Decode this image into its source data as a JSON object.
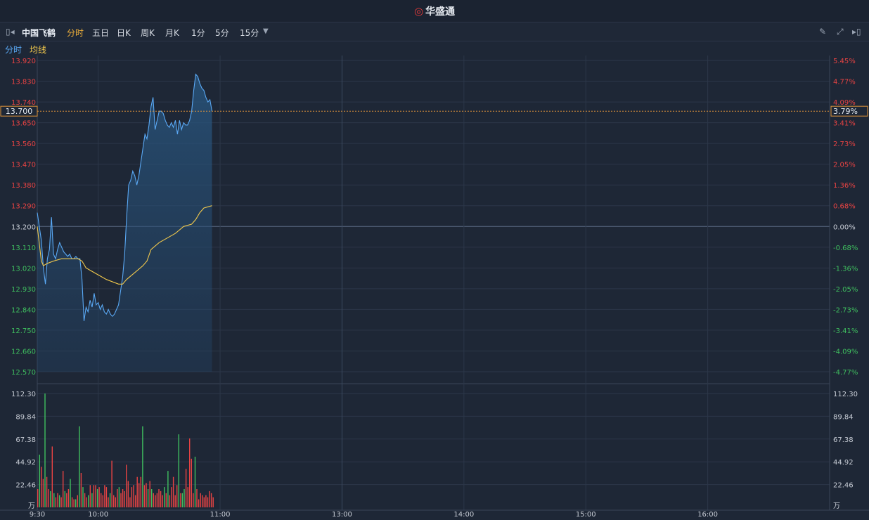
{
  "app": {
    "logo_text": "华盛通"
  },
  "toolbar": {
    "stock_name": "中国飞鹤",
    "periods": [
      "分时",
      "五日",
      "日K",
      "周K",
      "月K",
      "1分",
      "5分",
      "15分"
    ],
    "active_period": "分时"
  },
  "legend": {
    "price_label": "分时",
    "avg_label": "均线"
  },
  "colors": {
    "background": "#1e2736",
    "price_line": "#5aa9f5",
    "avg_line": "#f2c94c",
    "up": "#e84343",
    "down": "#3fbf5f",
    "current_marker": "#e0943a",
    "grid": "#2c3749"
  },
  "chart_data": {
    "type": "line",
    "prev_close": 13.2,
    "current_price": "13.700",
    "current_pct": "3.79%",
    "y_ticks_left": [
      "13.920",
      "13.830",
      "13.740",
      "13.650",
      "13.560",
      "13.470",
      "13.380",
      "13.290",
      "13.200",
      "13.110",
      "13.020",
      "12.930",
      "12.840",
      "12.750",
      "12.660",
      "12.570"
    ],
    "y_ticks_right": [
      "5.45%",
      "4.77%",
      "4.09%",
      "3.41%",
      "2.73%",
      "2.05%",
      "1.36%",
      "0.68%",
      "0.00%",
      "-0.68%",
      "-1.36%",
      "-2.05%",
      "-2.73%",
      "-3.41%",
      "-4.09%",
      "-4.77%"
    ],
    "ylim": [
      12.57,
      13.92
    ],
    "x_ticks": [
      "9:30",
      "10:00",
      "11:00",
      "13:00",
      "14:00",
      "15:00",
      "16:00"
    ],
    "volume_ticks": [
      "112.30",
      "89.84",
      "67.38",
      "44.92",
      "22.46"
    ],
    "volume_unit": "万",
    "volume_max": 112.3,
    "price": [
      [
        0,
        13.26
      ],
      [
        2,
        13.14
      ],
      [
        3,
        13.02
      ],
      [
        4,
        12.95
      ],
      [
        5,
        13.06
      ],
      [
        6,
        13.1
      ],
      [
        7,
        13.24
      ],
      [
        8,
        13.08
      ],
      [
        9,
        13.06
      ],
      [
        10,
        13.1
      ],
      [
        11,
        13.13
      ],
      [
        12,
        13.11
      ],
      [
        13,
        13.09
      ],
      [
        14,
        13.08
      ],
      [
        15,
        13.07
      ],
      [
        16,
        13.08
      ],
      [
        17,
        13.06
      ],
      [
        18,
        13.06
      ],
      [
        19,
        13.07
      ],
      [
        20,
        13.06
      ],
      [
        21,
        13.06
      ],
      [
        22,
        12.97
      ],
      [
        23,
        12.79
      ],
      [
        24,
        12.85
      ],
      [
        25,
        12.83
      ],
      [
        26,
        12.88
      ],
      [
        27,
        12.85
      ],
      [
        28,
        12.91
      ],
      [
        29,
        12.86
      ],
      [
        30,
        12.87
      ],
      [
        31,
        12.84
      ],
      [
        32,
        12.86
      ],
      [
        33,
        12.83
      ],
      [
        34,
        12.82
      ],
      [
        35,
        12.84
      ],
      [
        36,
        12.82
      ],
      [
        37,
        12.81
      ],
      [
        38,
        12.82
      ],
      [
        39,
        12.84
      ],
      [
        40,
        12.86
      ],
      [
        41,
        12.92
      ],
      [
        42,
        12.98
      ],
      [
        43,
        13.08
      ],
      [
        44,
        13.24
      ],
      [
        45,
        13.38
      ],
      [
        46,
        13.4
      ],
      [
        47,
        13.44
      ],
      [
        48,
        13.42
      ],
      [
        49,
        13.38
      ],
      [
        50,
        13.42
      ],
      [
        51,
        13.48
      ],
      [
        52,
        13.54
      ],
      [
        53,
        13.6
      ],
      [
        54,
        13.58
      ],
      [
        55,
        13.64
      ],
      [
        56,
        13.72
      ],
      [
        57,
        13.76
      ],
      [
        58,
        13.62
      ],
      [
        59,
        13.66
      ],
      [
        60,
        13.7
      ],
      [
        61,
        13.7
      ],
      [
        62,
        13.69
      ],
      [
        63,
        13.66
      ],
      [
        64,
        13.64
      ],
      [
        65,
        13.63
      ],
      [
        66,
        13.65
      ],
      [
        67,
        13.63
      ],
      [
        68,
        13.66
      ],
      [
        69,
        13.6
      ],
      [
        70,
        13.66
      ],
      [
        71,
        13.62
      ],
      [
        72,
        13.65
      ],
      [
        73,
        13.64
      ],
      [
        74,
        13.64
      ],
      [
        75,
        13.66
      ],
      [
        76,
        13.7
      ],
      [
        77,
        13.79
      ],
      [
        78,
        13.86
      ],
      [
        79,
        13.85
      ],
      [
        80,
        13.82
      ],
      [
        81,
        13.8
      ],
      [
        82,
        13.79
      ],
      [
        83,
        13.76
      ],
      [
        84,
        13.74
      ],
      [
        85,
        13.75
      ],
      [
        86,
        13.7
      ]
    ],
    "avg": [
      [
        0,
        13.2
      ],
      [
        2,
        13.05
      ],
      [
        3,
        13.03
      ],
      [
        5,
        13.04
      ],
      [
        8,
        13.05
      ],
      [
        12,
        13.06
      ],
      [
        16,
        13.06
      ],
      [
        20,
        13.06
      ],
      [
        22,
        13.05
      ],
      [
        24,
        13.02
      ],
      [
        28,
        13.0
      ],
      [
        34,
        12.97
      ],
      [
        40,
        12.95
      ],
      [
        42,
        12.95
      ],
      [
        44,
        12.97
      ],
      [
        48,
        13.0
      ],
      [
        52,
        13.03
      ],
      [
        54,
        13.05
      ],
      [
        56,
        13.1
      ],
      [
        60,
        13.13
      ],
      [
        64,
        13.15
      ],
      [
        68,
        13.17
      ],
      [
        72,
        13.2
      ],
      [
        76,
        13.21
      ],
      [
        78,
        13.23
      ],
      [
        80,
        13.26
      ],
      [
        82,
        13.28
      ],
      [
        86,
        13.29
      ]
    ],
    "volume": [
      [
        0,
        18,
        "up"
      ],
      [
        1,
        52,
        "down"
      ],
      [
        2,
        40,
        "up"
      ],
      [
        3,
        28,
        "up"
      ],
      [
        4,
        112.3,
        "down"
      ],
      [
        5,
        30,
        "up"
      ],
      [
        6,
        18,
        "up"
      ],
      [
        7,
        16,
        "down"
      ],
      [
        8,
        60,
        "up"
      ],
      [
        9,
        14,
        "down"
      ],
      [
        10,
        10,
        "up"
      ],
      [
        11,
        14,
        "up"
      ],
      [
        12,
        12,
        "down"
      ],
      [
        13,
        10,
        "up"
      ],
      [
        14,
        36,
        "up"
      ],
      [
        15,
        16,
        "down"
      ],
      [
        16,
        14,
        "up"
      ],
      [
        17,
        18,
        "up"
      ],
      [
        18,
        28,
        "down"
      ],
      [
        19,
        10,
        "up"
      ],
      [
        20,
        8,
        "up"
      ],
      [
        21,
        8,
        "down"
      ],
      [
        22,
        12,
        "up"
      ],
      [
        23,
        80,
        "down"
      ],
      [
        24,
        34,
        "up"
      ],
      [
        25,
        20,
        "down"
      ],
      [
        26,
        14,
        "up"
      ],
      [
        27,
        10,
        "up"
      ],
      [
        28,
        12,
        "down"
      ],
      [
        29,
        22,
        "up"
      ],
      [
        30,
        14,
        "down"
      ],
      [
        31,
        22,
        "up"
      ],
      [
        32,
        22,
        "up"
      ],
      [
        33,
        18,
        "down"
      ],
      [
        34,
        20,
        "up"
      ],
      [
        35,
        14,
        "up"
      ],
      [
        36,
        12,
        "up"
      ],
      [
        37,
        22,
        "up"
      ],
      [
        38,
        20,
        "up"
      ],
      [
        39,
        10,
        "up"
      ],
      [
        40,
        14,
        "down"
      ],
      [
        41,
        46,
        "up"
      ],
      [
        42,
        12,
        "up"
      ],
      [
        43,
        10,
        "up"
      ],
      [
        44,
        18,
        "up"
      ],
      [
        45,
        20,
        "down"
      ],
      [
        46,
        14,
        "up"
      ],
      [
        47,
        18,
        "up"
      ],
      [
        48,
        16,
        "up"
      ],
      [
        49,
        42,
        "up"
      ],
      [
        50,
        26,
        "up"
      ],
      [
        51,
        10,
        "up"
      ],
      [
        52,
        20,
        "up"
      ],
      [
        53,
        22,
        "up"
      ],
      [
        54,
        12,
        "up"
      ],
      [
        55,
        30,
        "up"
      ],
      [
        56,
        24,
        "up"
      ],
      [
        57,
        30,
        "up"
      ],
      [
        58,
        80,
        "down"
      ],
      [
        59,
        22,
        "up"
      ],
      [
        60,
        24,
        "up"
      ],
      [
        61,
        18,
        "down"
      ],
      [
        62,
        26,
        "up"
      ],
      [
        63,
        18,
        "down"
      ],
      [
        64,
        14,
        "up"
      ],
      [
        65,
        12,
        "up"
      ],
      [
        66,
        14,
        "up"
      ],
      [
        67,
        18,
        "up"
      ],
      [
        68,
        16,
        "up"
      ],
      [
        69,
        12,
        "up"
      ],
      [
        70,
        20,
        "down"
      ],
      [
        71,
        14,
        "up"
      ],
      [
        72,
        36,
        "down"
      ],
      [
        73,
        12,
        "up"
      ],
      [
        74,
        20,
        "up"
      ],
      [
        75,
        30,
        "up"
      ],
      [
        76,
        12,
        "up"
      ],
      [
        77,
        22,
        "up"
      ],
      [
        78,
        72,
        "down"
      ],
      [
        79,
        14,
        "up"
      ],
      [
        80,
        14,
        "down"
      ],
      [
        81,
        18,
        "down"
      ],
      [
        82,
        38,
        "up"
      ],
      [
        83,
        20,
        "up"
      ],
      [
        84,
        68,
        "up"
      ],
      [
        85,
        48,
        "up"
      ],
      [
        86,
        14,
        "up"
      ],
      [
        87,
        50,
        "down"
      ],
      [
        88,
        18,
        "up"
      ],
      [
        89,
        8,
        "up"
      ],
      [
        90,
        14,
        "up"
      ],
      [
        91,
        12,
        "up"
      ],
      [
        92,
        10,
        "up"
      ],
      [
        93,
        12,
        "up"
      ],
      [
        94,
        10,
        "up"
      ],
      [
        95,
        16,
        "up"
      ],
      [
        96,
        14,
        "up"
      ],
      [
        97,
        10,
        "up"
      ]
    ]
  }
}
